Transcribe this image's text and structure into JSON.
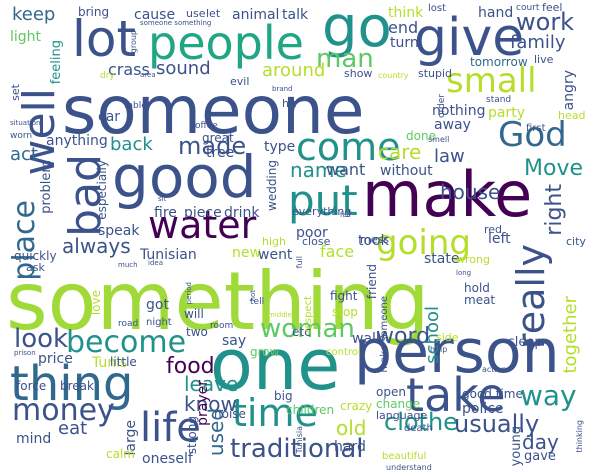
{
  "palette": {
    "navy": "#3b528b",
    "teal": "#21918c",
    "green": "#5ec962",
    "purple": "#440154",
    "yellow": "#b5de2b",
    "dark": "#31688e"
  },
  "words": [
    {
      "text": "something",
      "color": "#a0da39"
    },
    {
      "text": "someone",
      "color": "#3b528b"
    },
    {
      "text": "person",
      "color": "#3b528b"
    },
    {
      "text": "one",
      "color": "#21918c"
    },
    {
      "text": "make",
      "color": "#440154"
    },
    {
      "text": "good",
      "color": "#3b528b"
    },
    {
      "text": "thing",
      "color": "#31688e"
    },
    {
      "text": "take",
      "color": "#3b528b"
    },
    {
      "text": "give",
      "color": "#3b528b"
    },
    {
      "text": "people",
      "color": "#21a685"
    },
    {
      "text": "lot",
      "color": "#3b528b"
    },
    {
      "text": "go",
      "color": "#21918c"
    },
    {
      "text": "put",
      "color": "#21918c"
    },
    {
      "text": "well",
      "color": "#3b528b"
    },
    {
      "text": "bad",
      "color": "#3b528b"
    },
    {
      "text": "come",
      "color": "#21918c"
    },
    {
      "text": "water",
      "color": "#440154"
    },
    {
      "text": "small",
      "color": "#b5de2b"
    },
    {
      "text": "God",
      "color": "#31688e"
    },
    {
      "text": "really",
      "color": "#3b528b"
    },
    {
      "text": "going",
      "color": "#b5de2b"
    },
    {
      "text": "time",
      "color": "#21918c"
    },
    {
      "text": "become",
      "color": "#21918c"
    },
    {
      "text": "life",
      "color": "#3b528b"
    },
    {
      "text": "money",
      "color": "#3b528b"
    },
    {
      "text": "woman",
      "color": "#5ec962"
    },
    {
      "text": "way",
      "color": "#21918c"
    },
    {
      "text": "place",
      "color": "#31688e"
    },
    {
      "text": "look",
      "color": "#3b528b"
    },
    {
      "text": "made",
      "color": "#3b528b"
    },
    {
      "text": "man",
      "color": "#5ec962"
    },
    {
      "text": "always",
      "color": "#3b528b"
    },
    {
      "text": "word",
      "color": "#3b528b"
    },
    {
      "text": "clothe",
      "color": "#21918c"
    },
    {
      "text": "traditional",
      "color": "#3b528b"
    },
    {
      "text": "usually",
      "color": "#3b528b"
    },
    {
      "text": "food",
      "color": "#440154"
    },
    {
      "text": "know",
      "color": "#3b528b"
    },
    {
      "text": "leave",
      "color": "#21918c"
    },
    {
      "text": "used",
      "color": "#31688e"
    },
    {
      "text": "old",
      "color": "#b5de2b"
    },
    {
      "text": "day",
      "color": "#3b528b"
    },
    {
      "text": "house",
      "color": "#3b528b"
    },
    {
      "text": "right",
      "color": "#3b528b"
    },
    {
      "text": "name",
      "color": "#21918c"
    },
    {
      "text": "care",
      "color": "#b5de2b"
    },
    {
      "text": "want",
      "color": "#3b528b"
    },
    {
      "text": "law",
      "color": "#3b528b"
    },
    {
      "text": "without",
      "color": "#3b528b"
    },
    {
      "text": "Move",
      "color": "#21918c"
    },
    {
      "text": "work",
      "color": "#3b528b"
    },
    {
      "text": "family",
      "color": "#3b528b"
    },
    {
      "text": "sound",
      "color": "#3b528b"
    },
    {
      "text": "around",
      "color": "#b5de2b"
    },
    {
      "text": "crass",
      "color": "#3b528b"
    },
    {
      "text": "keep",
      "color": "#31688e"
    },
    {
      "text": "end",
      "color": "#3b528b"
    },
    {
      "text": "turn",
      "color": "#3b528b"
    },
    {
      "text": "think",
      "color": "#b5de2b"
    },
    {
      "text": "hand",
      "color": "#3b528b"
    },
    {
      "text": "tomorrow",
      "color": "#31688e"
    },
    {
      "text": "back",
      "color": "#21918c"
    },
    {
      "text": "act",
      "color": "#31688e"
    },
    {
      "text": "bring",
      "color": "#3b528b"
    },
    {
      "text": "cause",
      "color": "#3b528b"
    },
    {
      "text": "animal",
      "color": "#3b528b"
    },
    {
      "text": "talk",
      "color": "#3b528b"
    },
    {
      "text": "light",
      "color": "#5ec962"
    },
    {
      "text": "feeling",
      "color": "#21918c"
    },
    {
      "text": "nothing",
      "color": "#3b528b"
    },
    {
      "text": "away",
      "color": "#3b528b"
    },
    {
      "text": "party",
      "color": "#b5de2b"
    },
    {
      "text": "angry",
      "color": "#3b528b"
    },
    {
      "text": "speak",
      "color": "#3b528b"
    },
    {
      "text": "drink",
      "color": "#3b528b"
    },
    {
      "text": "piece",
      "color": "#3b528b"
    },
    {
      "text": "fire",
      "color": "#3b528b"
    },
    {
      "text": "type",
      "color": "#3b528b"
    },
    {
      "text": "new",
      "color": "#b5de2b"
    },
    {
      "text": "went",
      "color": "#3b528b"
    },
    {
      "text": "face",
      "color": "#b5de2b"
    },
    {
      "text": "took",
      "color": "#3b528b"
    },
    {
      "text": "poor",
      "color": "#3b528b"
    },
    {
      "text": "state",
      "color": "#3b528b"
    },
    {
      "text": "left",
      "color": "#3b528b"
    },
    {
      "text": "Tunisian",
      "color": "#3b528b"
    },
    {
      "text": "together",
      "color": "#b5de2b"
    },
    {
      "text": "say",
      "color": "#3b528b"
    },
    {
      "text": "two",
      "color": "#3b528b"
    },
    {
      "text": "got",
      "color": "#3b528b"
    },
    {
      "text": "will",
      "color": "#3b528b"
    },
    {
      "text": "school",
      "color": "#21918c"
    },
    {
      "text": "walk",
      "color": "#3b528b"
    },
    {
      "text": "stop",
      "color": "#b5de2b"
    },
    {
      "text": "fight",
      "color": "#3b528b"
    },
    {
      "text": "etc",
      "color": "#3b528b"
    },
    {
      "text": "grow",
      "color": "#5ec962"
    },
    {
      "text": "price",
      "color": "#3b528b"
    },
    {
      "text": "Tunis",
      "color": "#b5de2b"
    },
    {
      "text": "little",
      "color": "#3b528b"
    },
    {
      "text": "force",
      "color": "#3b528b"
    },
    {
      "text": "break",
      "color": "#3b528b"
    },
    {
      "text": "mind",
      "color": "#3b528b"
    },
    {
      "text": "eat",
      "color": "#3b528b"
    },
    {
      "text": "large",
      "color": "#3b528b"
    },
    {
      "text": "strong",
      "color": "#3b528b"
    },
    {
      "text": "prayer",
      "color": "#440154"
    },
    {
      "text": "noise",
      "color": "#3b528b"
    },
    {
      "text": "big",
      "color": "#3b528b"
    },
    {
      "text": "children",
      "color": "#5ec962"
    },
    {
      "text": "crazy",
      "color": "#b5de2b"
    },
    {
      "text": "hard",
      "color": "#3b528b"
    },
    {
      "text": "open",
      "color": "#3b528b"
    },
    {
      "text": "change",
      "color": "#5ec962"
    },
    {
      "text": "good time",
      "color": "#3b528b"
    },
    {
      "text": "police",
      "color": "#3b528b"
    },
    {
      "text": "gave",
      "color": "#3b528b"
    },
    {
      "text": "young",
      "color": "#3b528b"
    },
    {
      "text": "oneself",
      "color": "#3b528b"
    },
    {
      "text": "calm",
      "color": "#b5de2b"
    },
    {
      "text": "sleep",
      "color": "#3b528b"
    },
    {
      "text": "hold",
      "color": "#3b528b"
    },
    {
      "text": "meat",
      "color": "#3b528b"
    },
    {
      "text": "friend",
      "color": "#3b528b"
    },
    {
      "text": "quickly",
      "color": "#3b528b"
    },
    {
      "text": "ask",
      "color": "#3b528b"
    },
    {
      "text": "anything",
      "color": "#3b528b"
    },
    {
      "text": "problem",
      "color": "#3b528b"
    },
    {
      "text": "especially",
      "color": "#3b528b"
    },
    {
      "text": "car",
      "color": "#3b528b"
    },
    {
      "text": "great",
      "color": "#3b528b"
    },
    {
      "text": "tree",
      "color": "#3b528b"
    },
    {
      "text": "done",
      "color": "#5ec962"
    },
    {
      "text": "show",
      "color": "#3b528b"
    },
    {
      "text": "stupid",
      "color": "#3b528b"
    },
    {
      "text": "evil",
      "color": "#3b528b"
    },
    {
      "text": "hit",
      "color": "#3b528b"
    },
    {
      "text": "wedding",
      "color": "#3b528b"
    },
    {
      "text": "everything",
      "color": "#3b528b"
    },
    {
      "text": "high",
      "color": "#b5de2b"
    },
    {
      "text": "close",
      "color": "#3b528b"
    },
    {
      "text": "mess",
      "color": "#3b528b"
    },
    {
      "text": "wrong",
      "color": "#b5de2b"
    },
    {
      "text": "red",
      "color": "#3b528b"
    },
    {
      "text": "city",
      "color": "#3b528b"
    },
    {
      "text": "live",
      "color": "#3b528b"
    },
    {
      "text": "feel",
      "color": "#3b528b"
    },
    {
      "text": "lost",
      "color": "#3b528b"
    },
    {
      "text": "court",
      "color": "#3b528b"
    },
    {
      "text": "use",
      "color": "#3b528b"
    },
    {
      "text": "let",
      "color": "#3b528b"
    },
    {
      "text": "set",
      "color": "#3b528b"
    },
    {
      "text": "first",
      "color": "#3b528b"
    },
    {
      "text": "head",
      "color": "#b5de2b"
    },
    {
      "text": "table",
      "color": "#3b528b"
    },
    {
      "text": "dry",
      "color": "#b5de2b"
    },
    {
      "text": "worn",
      "color": "#3b528b"
    },
    {
      "text": "coffee",
      "color": "#3b528b"
    },
    {
      "text": "order",
      "color": "#3b528b"
    },
    {
      "text": "stand",
      "color": "#3b528b"
    },
    {
      "text": "tell",
      "color": "#3b528b"
    },
    {
      "text": "respect",
      "color": "#b5de2b"
    },
    {
      "text": "make someone",
      "color": "#3b528b"
    },
    {
      "text": "side",
      "color": "#b5de2b"
    },
    {
      "text": "room",
      "color": "#3b528b"
    },
    {
      "text": "night",
      "color": "#3b528b"
    },
    {
      "text": "road",
      "color": "#3b528b"
    },
    {
      "text": "love",
      "color": "#b5de2b"
    },
    {
      "text": "control",
      "color": "#b5de2b"
    },
    {
      "text": "language",
      "color": "#3b528b"
    },
    {
      "text": "death",
      "color": "#3b528b"
    },
    {
      "text": "beautiful",
      "color": "#b5de2b"
    },
    {
      "text": "understand",
      "color": "#3b528b"
    },
    {
      "text": "Tunisia",
      "color": "#3b528b"
    },
    {
      "text": "action",
      "color": "#3b528b"
    },
    {
      "text": "thinking",
      "color": "#3b528b"
    },
    {
      "text": "prison",
      "color": "#3b528b"
    },
    {
      "text": "someone something",
      "color": "#3b528b"
    },
    {
      "text": "group",
      "color": "#3b528b"
    },
    {
      "text": "country",
      "color": "#b5de2b"
    },
    {
      "text": "smell",
      "color": "#3b528b"
    },
    {
      "text": "help",
      "color": "#3b528b"
    },
    {
      "text": "area",
      "color": "#3b528b"
    },
    {
      "text": "brand",
      "color": "#3b528b"
    },
    {
      "text": "situation",
      "color": "#3b528b"
    },
    {
      "text": "period",
      "color": "#3b528b"
    },
    {
      "text": "long",
      "color": "#3b528b"
    },
    {
      "text": "much",
      "color": "#3b528b"
    },
    {
      "text": "idea",
      "color": "#3b528b"
    },
    {
      "text": "full",
      "color": "#3b528b"
    },
    {
      "text": "hot",
      "color": "#3b528b"
    },
    {
      "text": "middle",
      "color": "#b5de2b"
    },
    {
      "text": "fair",
      "color": "#3b528b"
    },
    {
      "text": "sit",
      "color": "#3b528b"
    }
  ]
}
